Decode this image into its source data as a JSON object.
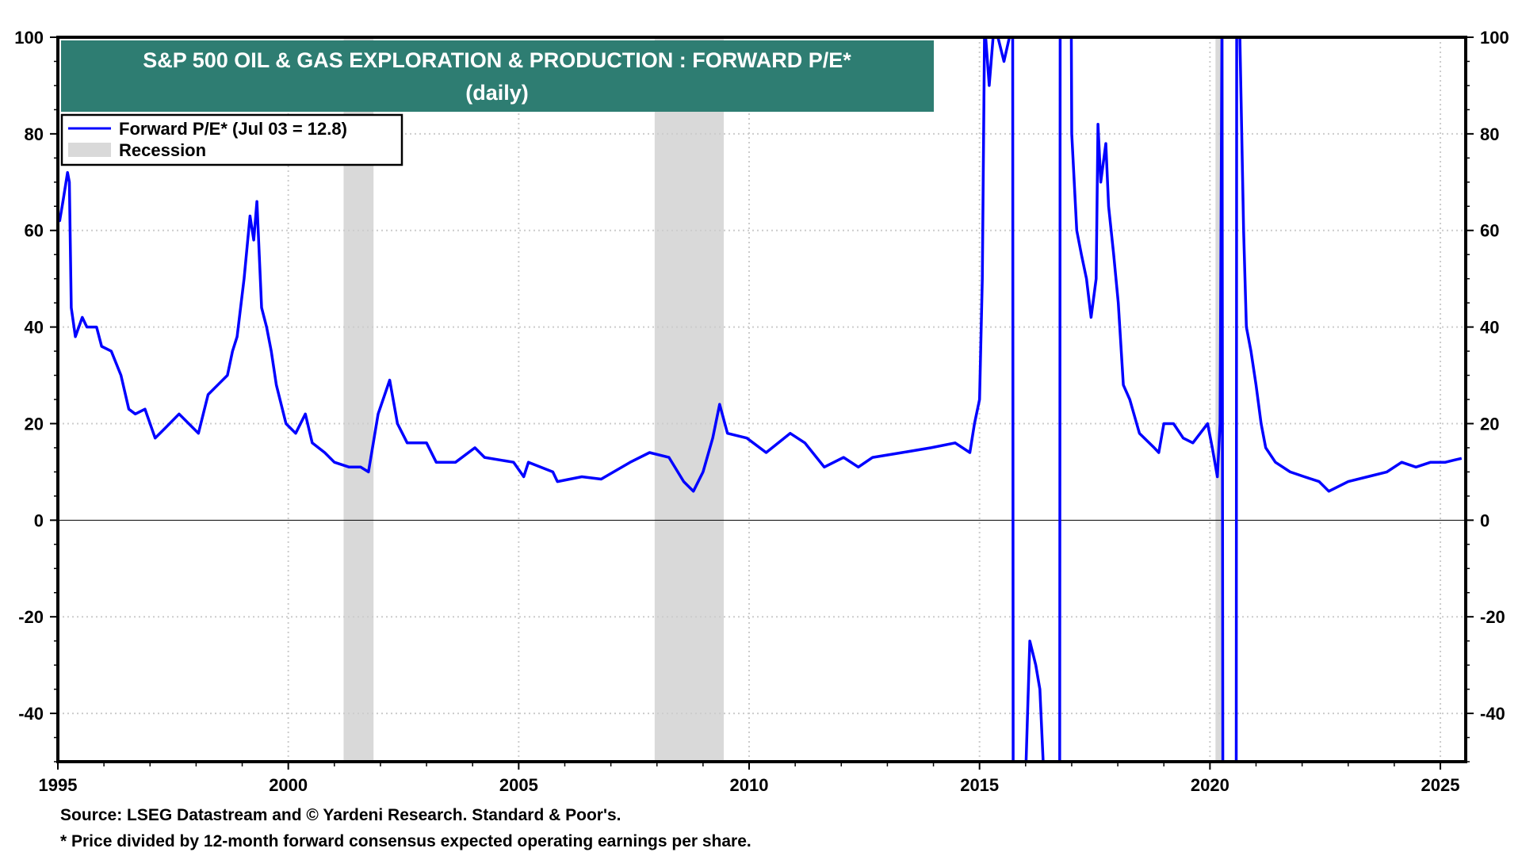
{
  "chart_data": {
    "type": "line",
    "title": "S&P 500 OIL & GAS EXPLORATION & PRODUCTION : FORWARD P/E*",
    "subtitle": "(daily)",
    "xlabel": "",
    "ylabel": "",
    "xlim": [
      1995,
      2025.55
    ],
    "ylim": [
      -50,
      100
    ],
    "yticks": [
      100,
      80,
      60,
      40,
      20,
      0,
      -20,
      -40
    ],
    "xticks": [
      1995,
      2000,
      2005,
      2010,
      2015,
      2020,
      2025
    ],
    "grid": true,
    "legend": {
      "placement": "top-left",
      "entries": [
        "Forward P/E* (Jul 03 = 12.8)",
        "Recession"
      ]
    },
    "colors": {
      "series": "#0000ff",
      "recession": "#d9d9d9",
      "title_bg": "#2e7d72",
      "title_text": "#ffffff"
    },
    "recessions": [
      [
        2001.2,
        2001.85
      ],
      [
        2007.95,
        2009.45
      ],
      [
        2020.12,
        2020.3
      ]
    ],
    "series": [
      {
        "name": "Forward P/E*",
        "points": [
          [
            1995.0,
            63
          ],
          [
            1995.04,
            62
          ],
          [
            1995.11,
            66
          ],
          [
            1995.21,
            72
          ],
          [
            1995.25,
            70
          ],
          [
            1995.29,
            44
          ],
          [
            1995.38,
            38
          ],
          [
            1995.53,
            42
          ],
          [
            1995.63,
            40
          ],
          [
            1995.84,
            40
          ],
          [
            1995.95,
            36
          ],
          [
            1996.16,
            35
          ],
          [
            1996.37,
            30
          ],
          [
            1996.54,
            23
          ],
          [
            1996.68,
            22
          ],
          [
            1996.89,
            23
          ],
          [
            1997.11,
            17
          ],
          [
            1997.32,
            19
          ],
          [
            1997.63,
            22
          ],
          [
            1997.84,
            20
          ],
          [
            1998.05,
            18
          ],
          [
            1998.26,
            26
          ],
          [
            1998.47,
            28
          ],
          [
            1998.68,
            30
          ],
          [
            1998.79,
            35
          ],
          [
            1998.89,
            38
          ],
          [
            1999.04,
            50
          ],
          [
            1999.17,
            63
          ],
          [
            1999.25,
            58
          ],
          [
            1999.32,
            66
          ],
          [
            1999.42,
            44
          ],
          [
            1999.53,
            40
          ],
          [
            1999.63,
            35
          ],
          [
            1999.74,
            28
          ],
          [
            1999.95,
            20
          ],
          [
            2000.16,
            18
          ],
          [
            2000.37,
            22
          ],
          [
            2000.52,
            16
          ],
          [
            2000.79,
            14
          ],
          [
            2001.0,
            12
          ],
          [
            2001.32,
            11
          ],
          [
            2001.57,
            11
          ],
          [
            2001.74,
            10
          ],
          [
            2001.95,
            22
          ],
          [
            2002.2,
            29
          ],
          [
            2002.37,
            20
          ],
          [
            2002.58,
            16
          ],
          [
            2003.0,
            16
          ],
          [
            2003.21,
            12
          ],
          [
            2003.63,
            12
          ],
          [
            2004.05,
            15
          ],
          [
            2004.26,
            13
          ],
          [
            2004.89,
            12
          ],
          [
            2005.11,
            9
          ],
          [
            2005.21,
            12
          ],
          [
            2005.74,
            10
          ],
          [
            2005.84,
            8
          ],
          [
            2006.37,
            9
          ],
          [
            2006.79,
            8.5
          ],
          [
            2007.42,
            12
          ],
          [
            2007.84,
            14
          ],
          [
            2008.26,
            13
          ],
          [
            2008.58,
            8
          ],
          [
            2008.79,
            6
          ],
          [
            2009.0,
            10
          ],
          [
            2009.21,
            17
          ],
          [
            2009.36,
            24
          ],
          [
            2009.53,
            18
          ],
          [
            2009.95,
            17
          ],
          [
            2010.37,
            14
          ],
          [
            2010.89,
            18
          ],
          [
            2011.21,
            16
          ],
          [
            2011.63,
            11
          ],
          [
            2012.05,
            13
          ],
          [
            2012.37,
            11
          ],
          [
            2012.68,
            13
          ],
          [
            2013.32,
            14
          ],
          [
            2013.95,
            15
          ],
          [
            2014.47,
            16
          ],
          [
            2014.79,
            14
          ],
          [
            2014.89,
            20
          ],
          [
            2015.0,
            25
          ],
          [
            2015.06,
            50
          ],
          [
            2015.11,
            120
          ],
          [
            2015.21,
            90
          ],
          [
            2015.32,
            120
          ],
          [
            2015.53,
            95
          ],
          [
            2015.72,
            120
          ],
          [
            2015.73,
            -100
          ],
          [
            2016.0,
            -100
          ],
          [
            2016.01,
            -50
          ],
          [
            2016.09,
            -25
          ],
          [
            2016.22,
            -30
          ],
          [
            2016.31,
            -35
          ],
          [
            2016.39,
            -52
          ],
          [
            2016.4,
            -100
          ],
          [
            2016.74,
            -100
          ],
          [
            2016.75,
            150
          ],
          [
            2016.99,
            150
          ],
          [
            2017.0,
            80
          ],
          [
            2017.11,
            60
          ],
          [
            2017.21,
            55
          ],
          [
            2017.32,
            50
          ],
          [
            2017.42,
            42
          ],
          [
            2017.53,
            50
          ],
          [
            2017.57,
            82
          ],
          [
            2017.63,
            70
          ],
          [
            2017.74,
            78
          ],
          [
            2017.8,
            65
          ],
          [
            2017.91,
            55
          ],
          [
            2018.01,
            45
          ],
          [
            2018.12,
            28
          ],
          [
            2018.26,
            25
          ],
          [
            2018.47,
            18
          ],
          [
            2018.79,
            15
          ],
          [
            2018.89,
            14
          ],
          [
            2019.0,
            20
          ],
          [
            2019.21,
            20
          ],
          [
            2019.42,
            17
          ],
          [
            2019.63,
            16
          ],
          [
            2019.95,
            20
          ],
          [
            2020.05,
            15
          ],
          [
            2020.16,
            9
          ],
          [
            2020.22,
            20
          ],
          [
            2020.24,
            60
          ],
          [
            2020.26,
            120
          ],
          [
            2020.28,
            -100
          ],
          [
            2020.57,
            -100
          ],
          [
            2020.58,
            150
          ],
          [
            2020.65,
            100
          ],
          [
            2020.73,
            60
          ],
          [
            2020.79,
            40
          ],
          [
            2020.89,
            35
          ],
          [
            2021.0,
            28
          ],
          [
            2021.11,
            20
          ],
          [
            2021.21,
            15
          ],
          [
            2021.42,
            12
          ],
          [
            2021.74,
            10
          ],
          [
            2022.05,
            9
          ],
          [
            2022.37,
            8
          ],
          [
            2022.58,
            6
          ],
          [
            2023.0,
            8
          ],
          [
            2023.42,
            9
          ],
          [
            2023.84,
            10
          ],
          [
            2024.16,
            12
          ],
          [
            2024.47,
            11
          ],
          [
            2024.79,
            12
          ],
          [
            2025.11,
            12
          ],
          [
            2025.32,
            12.5
          ],
          [
            2025.46,
            12.8
          ]
        ]
      }
    ]
  },
  "footer": {
    "source": "Source: LSEG Datastream and © Yardeni Research. Standard & Poor's.",
    "note": "* Price divided by 12-month forward consensus expected operating earnings per share."
  }
}
